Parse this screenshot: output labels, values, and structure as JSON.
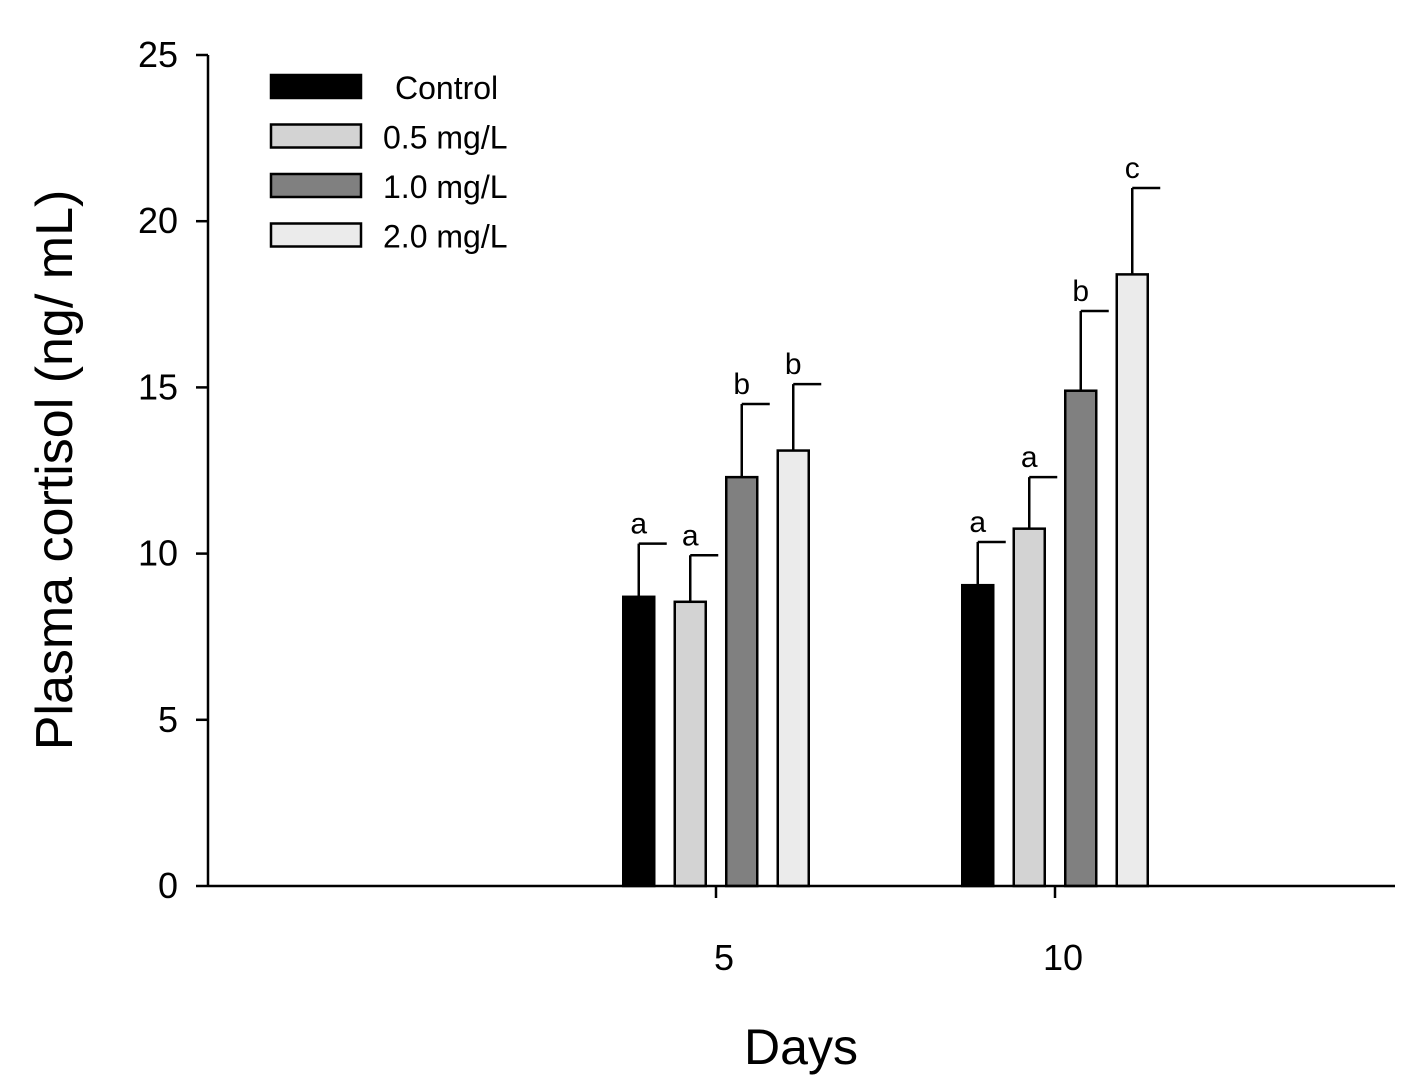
{
  "chart_data": {
    "type": "bar",
    "title": "",
    "xlabel": "Days",
    "ylabel": "Plasma cortisol (ng/ mL)",
    "ylim": [
      0,
      25
    ],
    "yticks": [
      "0",
      "5",
      "10",
      "15",
      "20",
      "25"
    ],
    "categories": [
      "5",
      "10"
    ],
    "legend_position": "top-left",
    "series": [
      {
        "name": "Control",
        "color": "#000000",
        "values": [
          8.7,
          9.05
        ],
        "errors": [
          1.6,
          1.3
        ],
        "labels": [
          "a",
          "a"
        ]
      },
      {
        "name": "0.5 mg/L",
        "color": "#d3d3d3",
        "values": [
          8.55,
          10.75
        ],
        "errors": [
          1.4,
          1.55
        ],
        "labels": [
          "a",
          "a"
        ]
      },
      {
        "name": "1.0 mg/L",
        "color": "#808080",
        "values": [
          12.3,
          14.9
        ],
        "errors": [
          2.2,
          2.4
        ],
        "labels": [
          "b",
          "b"
        ]
      },
      {
        "name": "2.0 mg/L",
        "color": "#ebebeb",
        "values": [
          13.1,
          18.4
        ],
        "errors": [
          2.0,
          2.6
        ],
        "labels": [
          "b",
          "c"
        ]
      }
    ]
  }
}
